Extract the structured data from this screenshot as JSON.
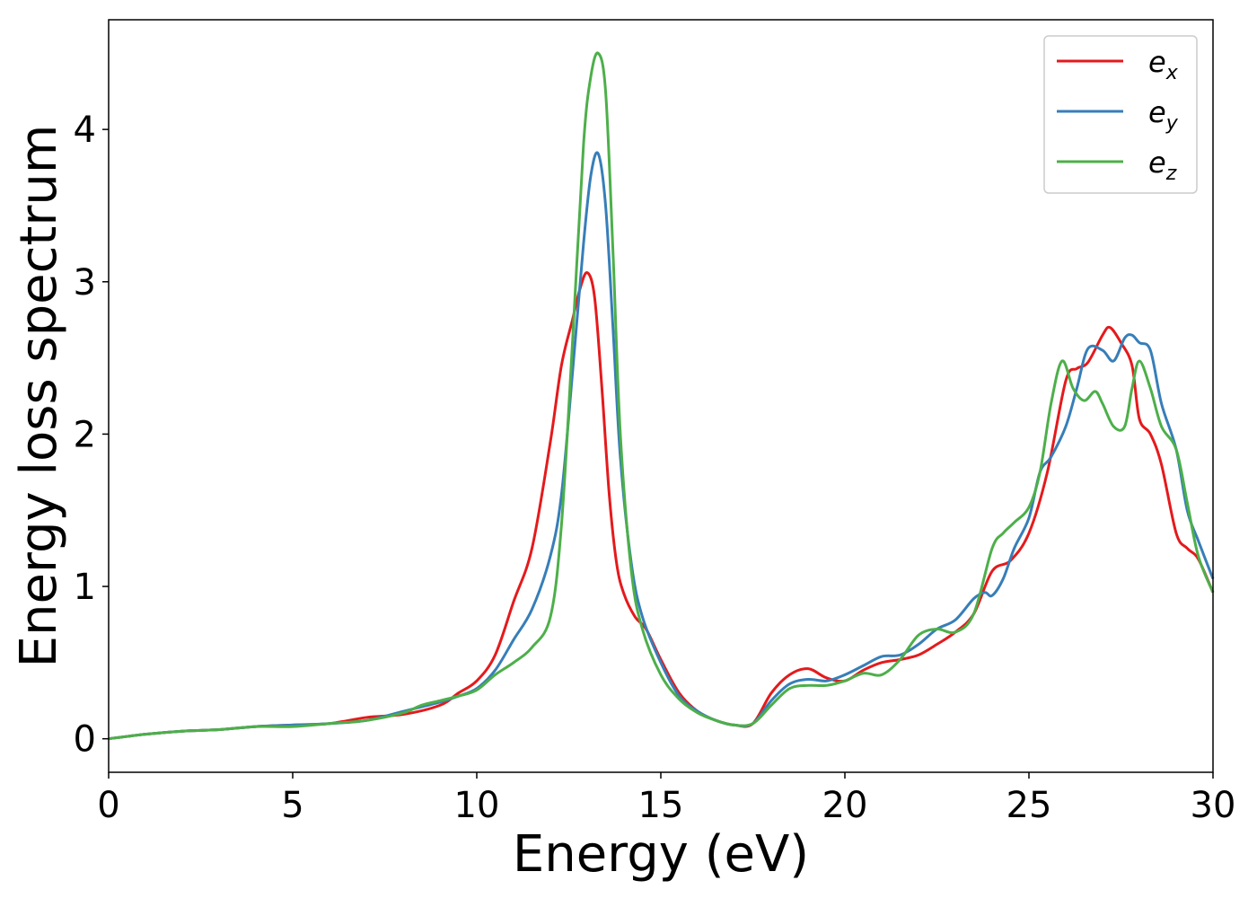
{
  "chart_data": {
    "type": "line",
    "title": "",
    "xlabel": "Energy (eV)",
    "ylabel": "Energy loss spectrum",
    "xlim": [
      0,
      30
    ],
    "ylim": [
      -0.22,
      4.72
    ],
    "xticks": [
      0,
      5,
      10,
      15,
      20,
      25,
      30
    ],
    "xtick_labels": [
      "0",
      "5",
      "10",
      "15",
      "20",
      "25",
      "30"
    ],
    "yticks": [
      0,
      1,
      2,
      3,
      4
    ],
    "ytick_labels": [
      "0",
      "1",
      "2",
      "3",
      "4"
    ],
    "grid": false,
    "legend_position": "top-right",
    "series": [
      {
        "name": "e_x",
        "legend_base": "e",
        "legend_sub": "x",
        "color": "#e41a1c",
        "x": [
          0,
          1,
          2,
          3,
          4,
          5,
          6,
          7,
          8,
          9,
          9.5,
          10,
          10.5,
          11,
          11.5,
          12,
          12.3,
          12.6,
          12.8,
          13.0,
          13.2,
          13.4,
          13.6,
          13.8,
          14.0,
          14.3,
          14.6,
          15.0,
          15.5,
          16.0,
          16.5,
          17.0,
          17.5,
          18.0,
          18.5,
          19.0,
          19.5,
          20.0,
          20.5,
          21.0,
          21.5,
          22.0,
          22.5,
          23.0,
          23.5,
          24.0,
          24.5,
          25.0,
          25.5,
          26.0,
          26.3,
          26.6,
          27.0,
          27.2,
          27.5,
          27.8,
          28.0,
          28.3,
          28.6,
          29.0,
          29.3,
          29.6,
          30.0
        ],
        "y": [
          0.0,
          0.03,
          0.05,
          0.06,
          0.08,
          0.09,
          0.1,
          0.14,
          0.16,
          0.22,
          0.3,
          0.38,
          0.55,
          0.9,
          1.25,
          1.95,
          2.45,
          2.75,
          2.95,
          3.06,
          2.9,
          2.3,
          1.6,
          1.15,
          0.95,
          0.8,
          0.72,
          0.52,
          0.3,
          0.18,
          0.12,
          0.09,
          0.1,
          0.3,
          0.42,
          0.46,
          0.4,
          0.38,
          0.45,
          0.5,
          0.52,
          0.55,
          0.62,
          0.7,
          0.82,
          1.1,
          1.17,
          1.35,
          1.75,
          2.35,
          2.43,
          2.47,
          2.65,
          2.7,
          2.6,
          2.45,
          2.1,
          2.0,
          1.8,
          1.35,
          1.25,
          1.18,
          0.96
        ]
      },
      {
        "name": "e_y",
        "legend_base": "e",
        "legend_sub": "y",
        "color": "#377eb8",
        "x": [
          0,
          1,
          2,
          3,
          4,
          5,
          6,
          7,
          8,
          9,
          9.5,
          10,
          10.5,
          11,
          11.5,
          12,
          12.3,
          12.6,
          12.9,
          13.1,
          13.3,
          13.5,
          13.7,
          13.9,
          14.2,
          14.5,
          15.0,
          15.5,
          16.0,
          16.5,
          17.0,
          17.5,
          18.0,
          18.5,
          19.0,
          19.5,
          20.0,
          20.5,
          21.0,
          21.5,
          22.0,
          22.5,
          23.0,
          23.5,
          23.8,
          24.0,
          24.3,
          24.6,
          25.0,
          25.3,
          25.6,
          26.0,
          26.3,
          26.6,
          27.0,
          27.3,
          27.6,
          27.8,
          28.0,
          28.3,
          28.6,
          29.0,
          29.3,
          29.6,
          30.0
        ],
        "y": [
          0.0,
          0.03,
          0.05,
          0.06,
          0.08,
          0.09,
          0.1,
          0.12,
          0.18,
          0.24,
          0.28,
          0.33,
          0.45,
          0.65,
          0.85,
          1.2,
          1.6,
          2.4,
          3.25,
          3.7,
          3.84,
          3.5,
          2.7,
          1.85,
          1.15,
          0.8,
          0.5,
          0.28,
          0.18,
          0.12,
          0.09,
          0.1,
          0.25,
          0.36,
          0.39,
          0.38,
          0.42,
          0.48,
          0.54,
          0.55,
          0.62,
          0.72,
          0.78,
          0.92,
          0.96,
          0.94,
          1.05,
          1.25,
          1.45,
          1.75,
          1.85,
          2.05,
          2.3,
          2.56,
          2.55,
          2.48,
          2.63,
          2.65,
          2.6,
          2.55,
          2.2,
          1.9,
          1.5,
          1.3,
          1.05
        ]
      },
      {
        "name": "e_z",
        "legend_base": "e",
        "legend_sub": "z",
        "color": "#4daf4a",
        "x": [
          0,
          1,
          2,
          3,
          4,
          5,
          6,
          7,
          8,
          8.5,
          9,
          9.5,
          10,
          10.5,
          11,
          11.5,
          12,
          12.3,
          12.6,
          12.9,
          13.1,
          13.3,
          13.5,
          13.7,
          13.9,
          14.2,
          14.5,
          15.0,
          15.5,
          16.0,
          16.5,
          17.0,
          17.5,
          18.0,
          18.5,
          19.0,
          19.5,
          20.0,
          20.5,
          21.0,
          21.5,
          22.0,
          22.5,
          23.0,
          23.5,
          24.0,
          24.3,
          24.6,
          25.0,
          25.3,
          25.6,
          25.9,
          26.2,
          26.5,
          26.8,
          27.0,
          27.3,
          27.6,
          27.8,
          28.0,
          28.3,
          28.6,
          29.0,
          29.3,
          29.6,
          30.0
        ],
        "y": [
          0.0,
          0.03,
          0.05,
          0.06,
          0.08,
          0.08,
          0.1,
          0.12,
          0.17,
          0.22,
          0.25,
          0.28,
          0.32,
          0.42,
          0.5,
          0.6,
          0.8,
          1.4,
          2.6,
          3.9,
          4.35,
          4.5,
          4.25,
          3.2,
          2.0,
          1.1,
          0.72,
          0.42,
          0.26,
          0.17,
          0.12,
          0.09,
          0.1,
          0.22,
          0.33,
          0.35,
          0.35,
          0.38,
          0.43,
          0.42,
          0.52,
          0.68,
          0.72,
          0.7,
          0.82,
          1.25,
          1.35,
          1.42,
          1.52,
          1.75,
          2.2,
          2.48,
          2.3,
          2.22,
          2.28,
          2.2,
          2.05,
          2.05,
          2.3,
          2.48,
          2.3,
          2.05,
          1.9,
          1.55,
          1.2,
          0.96
        ]
      }
    ]
  }
}
